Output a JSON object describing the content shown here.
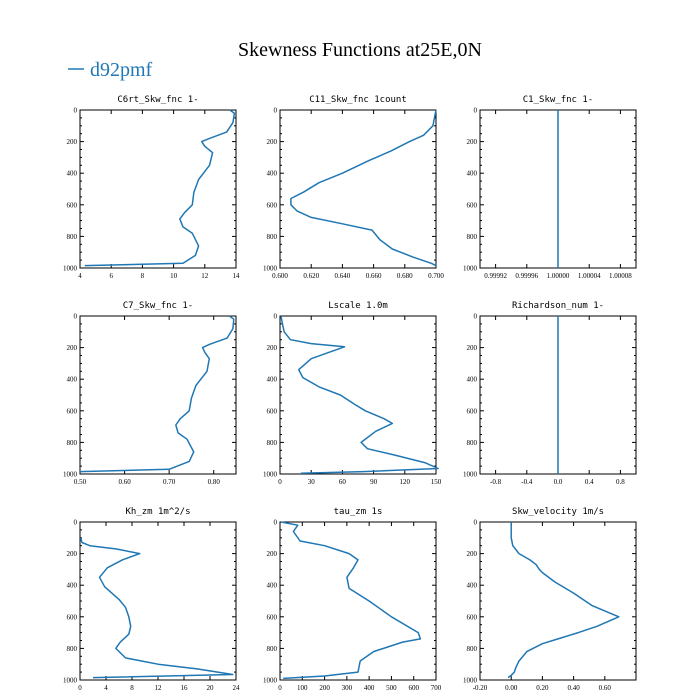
{
  "title": "Skewness Functions at25E,0N",
  "legend": {
    "label": "d92pmf",
    "color": "#1f77b4"
  },
  "colors": {
    "line": "#1f77b4",
    "axis": "#000000"
  },
  "chart_data": [
    {
      "type": "line",
      "title": "C6rt_Skw_fnc   1-",
      "xlim": [
        4,
        14
      ],
      "ylim": [
        1000,
        0
      ],
      "xticks": [
        4,
        6,
        8,
        10,
        12,
        14
      ],
      "xtick_labels": [
        "4",
        "6",
        "8",
        "10",
        "12",
        "14"
      ],
      "yticks": [
        0,
        200,
        400,
        600,
        800,
        1000
      ],
      "x": [
        13.6,
        13.9,
        13.8,
        13.4,
        12.3,
        11.8,
        12.0,
        12.5,
        12.3,
        11.6,
        11.3,
        11.2,
        10.7,
        10.4,
        10.6,
        11.2,
        11.6,
        11.4,
        10.6,
        4.3
      ],
      "y": [
        0,
        20,
        80,
        140,
        180,
        200,
        230,
        270,
        350,
        440,
        520,
        600,
        650,
        690,
        740,
        780,
        860,
        920,
        970,
        985
      ]
    },
    {
      "type": "line",
      "title": "C11_Skw_fnc   1count",
      "xlim": [
        0.6,
        0.7
      ],
      "ylim": [
        1000,
        0
      ],
      "xticks": [
        0.6,
        0.62,
        0.64,
        0.66,
        0.68,
        0.7
      ],
      "xtick_labels": [
        "0.600",
        "0.620",
        "0.640",
        "0.660",
        "0.680",
        "0.700"
      ],
      "yticks": [
        0,
        200,
        400,
        600,
        800,
        1000
      ],
      "x": [
        0.7,
        0.698,
        0.692,
        0.683,
        0.671,
        0.657,
        0.64,
        0.625,
        0.615,
        0.607,
        0.607,
        0.611,
        0.62,
        0.64,
        0.659,
        0.664,
        0.672,
        0.685,
        0.697,
        0.7
      ],
      "y": [
        0,
        100,
        160,
        200,
        260,
        320,
        400,
        460,
        520,
        560,
        600,
        640,
        680,
        720,
        760,
        820,
        880,
        930,
        970,
        985
      ]
    },
    {
      "type": "line",
      "title": "C1_Skw_fnc   1-",
      "xlim": [
        0.9999,
        1.0001
      ],
      "ylim": [
        1000,
        0
      ],
      "xticks": [
        0.99992,
        0.99996,
        1.0,
        1.00004,
        1.00008
      ],
      "xtick_labels": [
        "0.99992",
        "0.99996",
        "1.00000",
        "1.00004",
        "1.00008"
      ],
      "yticks": [
        0,
        200,
        400,
        600,
        800,
        1000
      ],
      "x": [
        1.0,
        1.0
      ],
      "y": [
        0,
        1000
      ]
    },
    {
      "type": "line",
      "title": "C7_Skw_fnc   1-",
      "xlim": [
        0.5,
        0.85
      ],
      "ylim": [
        1000,
        0
      ],
      "xticks": [
        0.5,
        0.6,
        0.7,
        0.8
      ],
      "xtick_labels": [
        "0.50",
        "0.60",
        "0.70",
        "0.80"
      ],
      "yticks": [
        0,
        200,
        400,
        600,
        800,
        1000
      ],
      "x": [
        0.835,
        0.845,
        0.843,
        0.83,
        0.79,
        0.775,
        0.78,
        0.79,
        0.785,
        0.76,
        0.75,
        0.745,
        0.725,
        0.715,
        0.72,
        0.74,
        0.755,
        0.745,
        0.7,
        0.5
      ],
      "y": [
        0,
        20,
        80,
        140,
        180,
        200,
        230,
        270,
        350,
        440,
        520,
        600,
        650,
        690,
        740,
        780,
        860,
        920,
        970,
        985
      ]
    },
    {
      "type": "line",
      "title": "Lscale   1.0m",
      "xlim": [
        0,
        150
      ],
      "ylim": [
        1000,
        0
      ],
      "xticks": [
        0,
        30,
        60,
        90,
        120,
        150
      ],
      "xtick_labels": [
        "0",
        "30",
        "60",
        "90",
        "120",
        "150"
      ],
      "yticks": [
        0,
        200,
        400,
        600,
        800,
        1000
      ],
      "x": [
        1,
        2,
        4,
        10,
        30,
        62,
        30,
        18,
        22,
        38,
        58,
        72,
        82,
        100,
        108,
        92,
        78,
        84,
        110,
        140,
        152,
        80,
        20
      ],
      "y": [
        0,
        40,
        100,
        150,
        175,
        195,
        270,
        340,
        390,
        450,
        500,
        560,
        600,
        650,
        680,
        730,
        800,
        840,
        880,
        930,
        965,
        985,
        995
      ]
    },
    {
      "type": "line",
      "title": "Richardson_num   1-",
      "xlim": [
        -1,
        1
      ],
      "ylim": [
        1000,
        0
      ],
      "xticks": [
        -0.8,
        -0.4,
        0,
        0.4,
        0.8
      ],
      "xtick_labels": [
        "-0.8",
        "-0.4",
        "0.0",
        "0.4",
        "0.8"
      ],
      "yticks": [
        0,
        200,
        400,
        600,
        800,
        1000
      ],
      "x": [
        0,
        0
      ],
      "y": [
        0,
        1000
      ]
    },
    {
      "type": "line",
      "title": "Kh_zm   1m^2/s",
      "xlim": [
        0,
        24
      ],
      "ylim": [
        1000,
        0
      ],
      "xticks": [
        0,
        4,
        8,
        12,
        16,
        20,
        24
      ],
      "xtick_labels": [
        "0",
        "4",
        "8",
        "12",
        "16",
        "20",
        "24"
      ],
      "yticks": [
        0,
        200,
        400,
        600,
        800,
        1000
      ],
      "x": [
        0.1,
        0.3,
        1.5,
        5.5,
        9.2,
        6.5,
        4.2,
        3.0,
        3.8,
        6.0,
        7.0,
        7.5,
        7.8,
        7.5,
        6.2,
        5.5,
        7.0,
        12.0,
        18.0,
        23.5,
        2.0
      ],
      "y": [
        100,
        130,
        150,
        170,
        200,
        240,
        290,
        350,
        410,
        490,
        540,
        600,
        660,
        710,
        760,
        800,
        860,
        900,
        930,
        965,
        985
      ]
    },
    {
      "type": "line",
      "title": "tau_zm   1s",
      "xlim": [
        0,
        700
      ],
      "ylim": [
        1000,
        0
      ],
      "xticks": [
        0,
        100,
        200,
        300,
        400,
        500,
        600,
        700
      ],
      "xtick_labels": [
        "0",
        "100",
        "200",
        "300",
        "400",
        "500",
        "600",
        "700"
      ],
      "yticks": [
        0,
        200,
        400,
        600,
        800,
        1000
      ],
      "x": [
        5,
        80,
        60,
        90,
        200,
        310,
        350,
        330,
        300,
        310,
        400,
        500,
        620,
        630,
        550,
        420,
        360,
        350,
        200,
        15
      ],
      "y": [
        0,
        20,
        60,
        120,
        150,
        200,
        240,
        290,
        350,
        420,
        500,
        600,
        700,
        740,
        760,
        820,
        880,
        950,
        975,
        990
      ]
    },
    {
      "type": "line",
      "title": "Skw_velocity   1m/s",
      "xlim": [
        -0.2,
        0.8
      ],
      "ylim": [
        1000,
        0
      ],
      "xticks": [
        -0.2,
        0.0,
        0.2,
        0.4,
        0.6
      ],
      "xtick_labels": [
        "-0.20",
        "0.00",
        "0.20",
        "0.40",
        "0.60"
      ],
      "yticks": [
        0,
        200,
        400,
        600,
        800,
        1000
      ],
      "x": [
        0.0,
        0.0,
        0.01,
        0.05,
        0.12,
        0.16,
        0.18,
        0.2,
        0.28,
        0.4,
        0.52,
        0.64,
        0.69,
        0.55,
        0.43,
        0.3,
        0.2,
        0.1,
        0.05,
        0.03,
        0.02,
        0.0,
        -0.02
      ],
      "y": [
        0,
        100,
        150,
        200,
        240,
        270,
        300,
        320,
        380,
        450,
        530,
        580,
        600,
        660,
        700,
        740,
        770,
        820,
        880,
        920,
        950,
        970,
        985
      ]
    }
  ]
}
